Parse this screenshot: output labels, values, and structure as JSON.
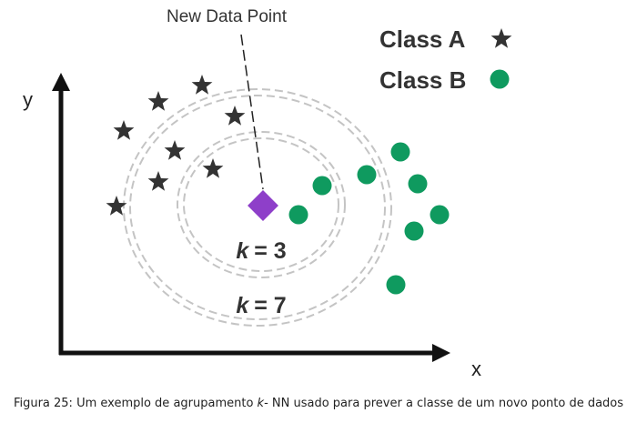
{
  "diagram": {
    "new_point_label": "New Data Point",
    "axis_x_label": "x",
    "axis_y_label": "y",
    "legend": [
      {
        "label": "Class A",
        "symbol": "star-icon",
        "color": "#333333"
      },
      {
        "label": "Class B",
        "symbol": "circle-icon",
        "color": "#0f9a5f"
      }
    ],
    "rings": [
      {
        "k_label": "k",
        "eq_label": "= 3"
      },
      {
        "k_label": "k",
        "eq_label": "= 7"
      }
    ],
    "new_point_color": "#8e3fc9",
    "ring_color": "#bdbdbd"
  },
  "caption": {
    "prefix": "Figura 25: Um exemplo de agrupamento ",
    "k": "k",
    "suffix": "- NN usado para prever a classe de um novo ponto de dados"
  }
}
